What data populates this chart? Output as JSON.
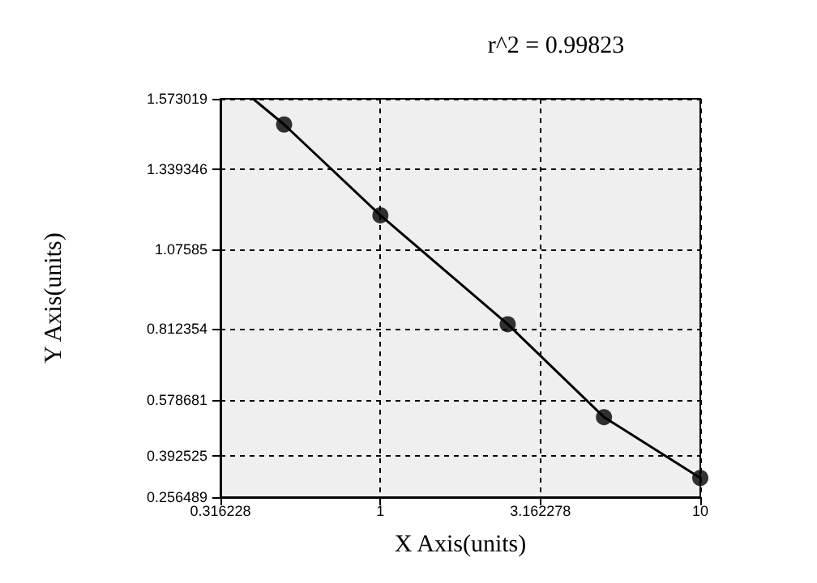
{
  "chart_data": {
    "type": "scatter",
    "title": "r^2 = 0.99823",
    "xlabel": "X Axis(units)",
    "ylabel": "Y Axis(units)",
    "log": "x",
    "grid": true,
    "xlim": [
      0.316228,
      10
    ],
    "xticks": [
      0.316228,
      1,
      3.162278,
      10
    ],
    "ylim": [
      0.256489,
      1.573019
    ],
    "yticks": [
      0.256489,
      0.392525,
      0.578681,
      0.812354,
      1.07585,
      1.339346,
      1.573019
    ],
    "series": [
      {
        "type": "line",
        "color": "#000000",
        "marker": "none",
        "line_style": "solid",
        "x": [
          0.4,
          0.5,
          1,
          2.5,
          5,
          10
        ],
        "values": [
          1.573,
          1.488,
          1.188,
          0.828,
          0.521,
          0.32
        ]
      },
      {
        "color": "#000000",
        "marker": "circle",
        "x": [
          0.5,
          1,
          2.5,
          5,
          10
        ],
        "values": [
          1.488,
          1.188,
          0.828,
          0.521,
          0.32
        ]
      }
    ]
  }
}
